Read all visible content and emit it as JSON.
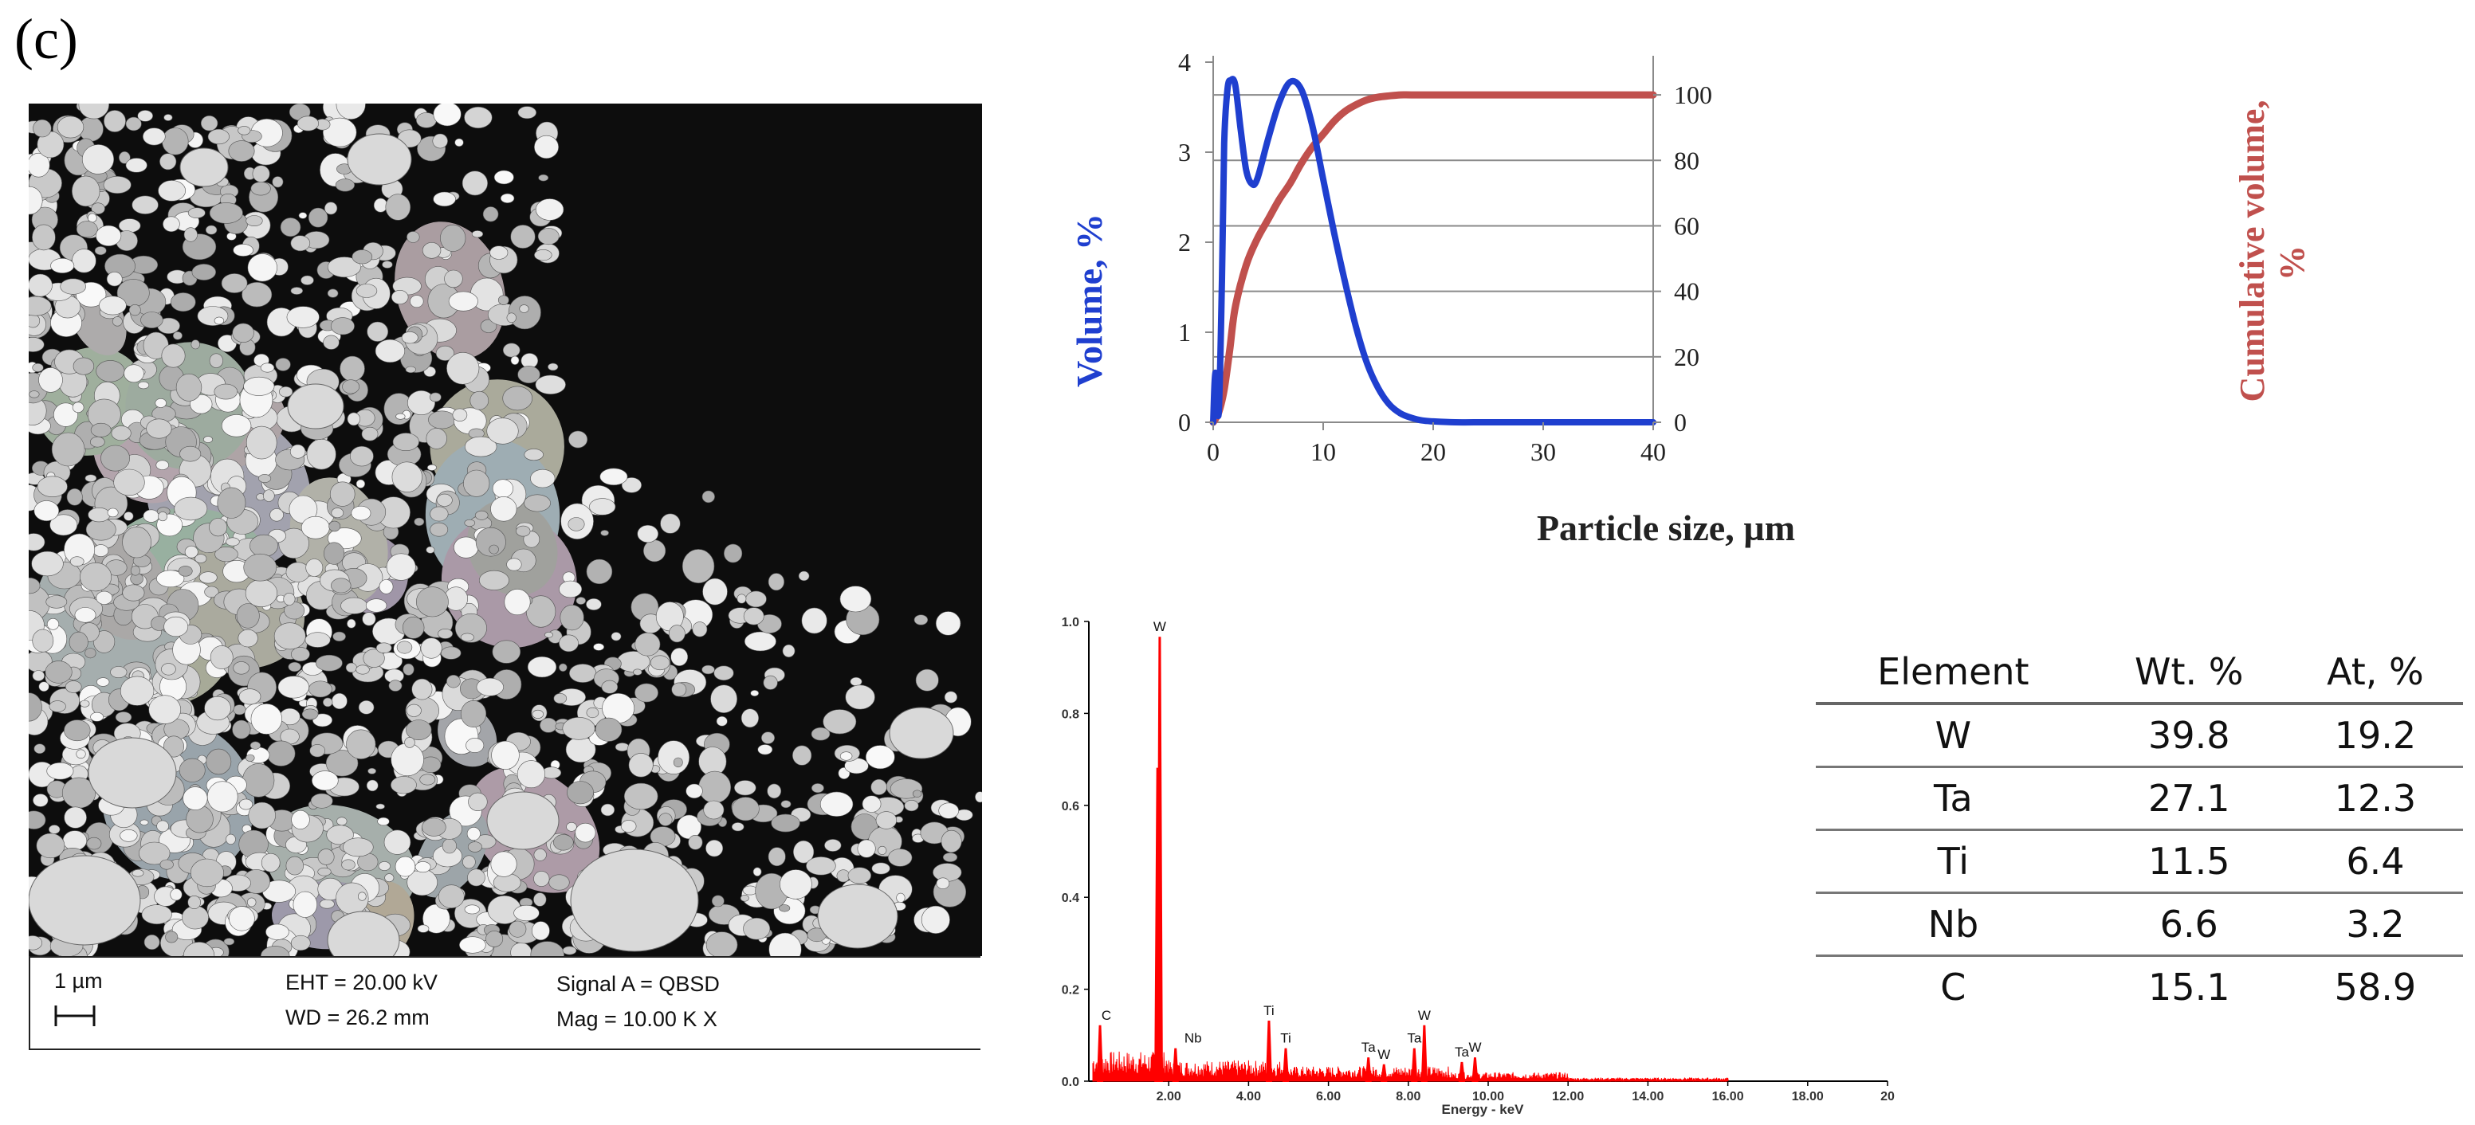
{
  "panel_label": "(c)",
  "sem": {
    "scale_label": "1 µm",
    "eht": "EHT = 20.00 kV",
    "wd": "WD = 26.2 mm",
    "signal": "Signal A = QBSD",
    "mag": "Mag =  10.00 K X"
  },
  "chart_data": [
    {
      "type": "line",
      "xlabel": "Particle size, µm",
      "ylabel": "Volume, %",
      "y2label": "Cumulative volume, %",
      "xlim": [
        0,
        40
      ],
      "ylim": [
        0,
        4
      ],
      "y2lim": [
        0,
        110
      ],
      "xticks": [
        0,
        10,
        20,
        30,
        40
      ],
      "yticks": [
        0,
        1,
        2,
        3,
        4
      ],
      "y2ticks": [
        0,
        20,
        40,
        60,
        80,
        100
      ],
      "grid": "horizontal",
      "series": [
        {
          "axis": "left",
          "color": "#1f3fcf",
          "x": [
            0,
            0.2,
            0.5,
            0.8,
            1.0,
            1.3,
            1.6,
            2.0,
            2.5,
            3.0,
            3.5,
            4.0,
            5.0,
            6.0,
            7.0,
            8.0,
            9.0,
            10.0,
            11.0,
            12.0,
            13.0,
            14.0,
            15.0,
            16.0,
            17.0,
            18.0,
            19.0,
            20.0,
            22.0,
            25.0,
            30.0,
            40.0
          ],
          "values": [
            0.0,
            0.55,
            0.1,
            1.6,
            3.1,
            3.7,
            3.8,
            3.75,
            3.25,
            2.8,
            2.65,
            2.7,
            3.15,
            3.55,
            3.78,
            3.7,
            3.3,
            2.7,
            2.1,
            1.55,
            1.05,
            0.65,
            0.38,
            0.2,
            0.1,
            0.05,
            0.02,
            0.01,
            0.0,
            0.0,
            0.0,
            0.0
          ]
        },
        {
          "axis": "right",
          "color": "#c0504d",
          "x": [
            0,
            0.5,
            1.0,
            1.5,
            2.0,
            3.0,
            4.0,
            5.0,
            6.0,
            7.0,
            8.0,
            9.0,
            10.0,
            11.0,
            12.0,
            13.0,
            14.0,
            15.0,
            16.0,
            17.0,
            18.0,
            20.0,
            25.0,
            30.0,
            40.0
          ],
          "values": [
            0,
            3,
            10,
            22,
            35,
            48,
            56,
            62,
            68,
            73,
            79,
            84,
            88,
            92,
            95,
            97,
            98.5,
            99.3,
            99.7,
            100,
            100,
            100,
            100,
            100,
            100
          ]
        }
      ]
    },
    {
      "type": "line",
      "xlabel": "Energy - keV",
      "ylabel": "",
      "xlim": [
        0,
        20
      ],
      "ylim": [
        0,
        1.0
      ],
      "xticks": [
        "2.00",
        "4.00",
        "6.00",
        "8.00",
        "10.00",
        "12.00",
        "14.00",
        "16.00",
        "18.00",
        "20"
      ],
      "yticks": [
        "0.0",
        "0.2",
        "0.4",
        "0.6",
        "0.8",
        "1.0"
      ],
      "color": "#ff0000",
      "peaks": [
        {
          "x": 0.28,
          "y": 0.12,
          "label": "C"
        },
        {
          "x": 1.775,
          "y": 0.965,
          "label": "W"
        },
        {
          "x": 1.72,
          "y": 0.68,
          "label": ""
        },
        {
          "x": 2.17,
          "y": 0.07,
          "label": "Nb"
        },
        {
          "x": 4.51,
          "y": 0.13,
          "label": "Ti"
        },
        {
          "x": 4.93,
          "y": 0.07,
          "label": "Ti"
        },
        {
          "x": 7.0,
          "y": 0.05,
          "label": "Ta"
        },
        {
          "x": 7.39,
          "y": 0.035,
          "label": "W"
        },
        {
          "x": 8.15,
          "y": 0.07,
          "label": "Ta"
        },
        {
          "x": 8.4,
          "y": 0.12,
          "label": "W"
        },
        {
          "x": 9.34,
          "y": 0.04,
          "label": "Ta"
        },
        {
          "x": 9.67,
          "y": 0.05,
          "label": "W"
        }
      ]
    }
  ],
  "table": {
    "headers": [
      "Element",
      "Wt. %",
      "At, %"
    ],
    "rows": [
      [
        "W",
        "39.8",
        "19.2"
      ],
      [
        "Ta",
        "27.1",
        "12.3"
      ],
      [
        "Ti",
        "11.5",
        "6.4"
      ],
      [
        "Nb",
        "6.6",
        "3.2"
      ],
      [
        "C",
        "15.1",
        "58.9"
      ]
    ]
  },
  "colors": {
    "volume": "#1f3fcf",
    "cumulative": "#c0504d",
    "eds": "#ff0000"
  }
}
